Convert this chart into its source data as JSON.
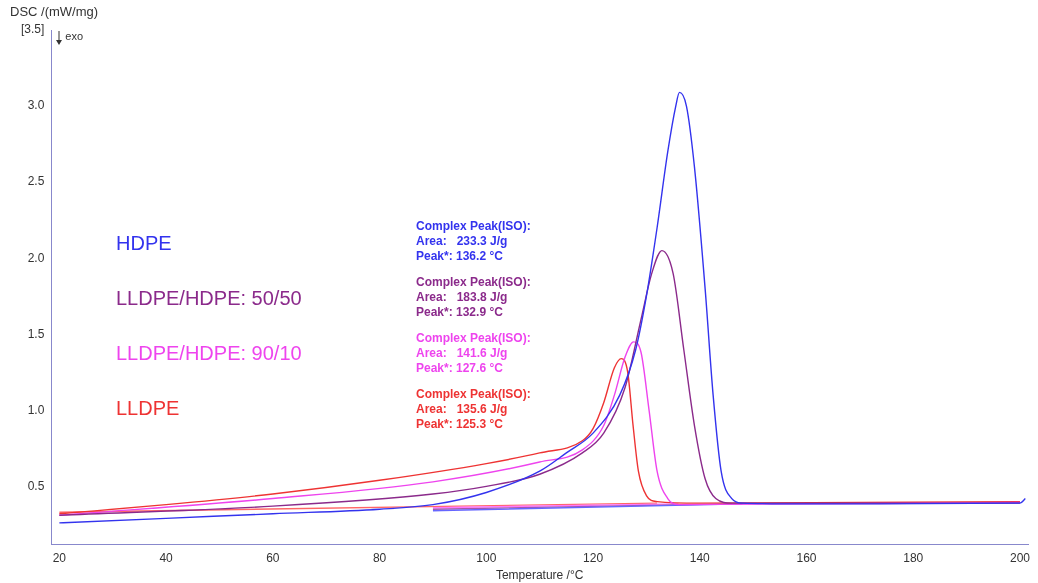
{
  "chart_data": {
    "type": "line",
    "xlabel": "Temperature /°C",
    "ylabel": "DSC /(mW/mg)",
    "xlim": [
      18.5,
      201.5
    ],
    "xticks": [
      20,
      40,
      60,
      80,
      100,
      120,
      140,
      160,
      180,
      200
    ],
    "ylim": [
      0.12,
      3.5
    ],
    "yticks": [
      0.5,
      {
        "value": 1,
        "label": "1.0"
      },
      1.5,
      {
        "value": 2,
        "label": "2.0"
      },
      2.5,
      {
        "value": 3,
        "label": "3.0"
      },
      {
        "value": 3.5,
        "label": "[3.5]"
      }
    ],
    "grid": false,
    "legend": "left",
    "marker": "none",
    "line_style": "solid",
    "annotations": [
      "exo",
      "Complex Peak(ISO):\nArea:   233.3 J/g\nPeak*: 136.2 °C",
      "Complex Peak(ISO):\nArea:   183.8 J/g\nPeak*: 132.9 °C",
      "Complex Peak(ISO):\nArea:   141.6 J/g\nPeak*: 127.6 °C",
      "Complex Peak(ISO):\nArea:   135.6 J/g\nPeak*: 125.3 °C"
    ],
    "series": [
      {
        "name": "HDPE",
        "color": "#3333ee",
        "x": [
          20,
          40,
          60,
          80,
          90,
          100,
          110,
          115,
          120,
          125,
          128,
          130,
          132,
          134,
          135.5,
          136.2,
          137.5,
          139,
          141,
          142.5,
          144,
          146,
          148,
          160,
          200,
          201
        ],
        "values": [
          0.26,
          0.29,
          0.32,
          0.35,
          0.38,
          0.46,
          0.6,
          0.72,
          0.85,
          1.1,
          1.4,
          1.75,
          2.2,
          2.7,
          3.0,
          3.09,
          3.0,
          2.6,
          1.8,
          1.1,
          0.6,
          0.42,
          0.39,
          0.385,
          0.39,
          0.42
        ]
      },
      {
        "name": "LLDPE/HDPE: 50/50",
        "color": "#8b2a8b",
        "x": [
          20,
          60,
          90,
          100,
          110,
          118,
          122,
          126,
          129,
          131,
          132.9,
          135,
          137,
          139,
          141,
          143,
          146,
          200
        ],
        "values": [
          0.31,
          0.37,
          0.45,
          0.5,
          0.58,
          0.72,
          0.85,
          1.15,
          1.6,
          1.9,
          2.05,
          1.9,
          1.4,
          0.9,
          0.55,
          0.42,
          0.39,
          0.39
        ]
      },
      {
        "name": "LLDPE/HDPE: 90/10",
        "color": "#ee44ee",
        "x": [
          20,
          60,
          90,
          110,
          118,
          122,
          124,
          126,
          127.6,
          129,
          130.5,
          132,
          134,
          136,
          200
        ],
        "values": [
          0.31,
          0.42,
          0.53,
          0.66,
          0.74,
          0.9,
          1.1,
          1.35,
          1.45,
          1.38,
          1.0,
          0.6,
          0.42,
          0.38,
          0.395
        ]
      },
      {
        "name": "LLDPE",
        "color": "#ee3333",
        "x": [
          20,
          40,
          60,
          80,
          100,
          110,
          118,
          120,
          122,
          124,
          125.3,
          126.5,
          127.5,
          128.5,
          130,
          132,
          140,
          200
        ],
        "values": [
          0.32,
          0.38,
          0.45,
          0.54,
          0.65,
          0.72,
          0.8,
          0.88,
          1.05,
          1.28,
          1.34,
          1.25,
          0.9,
          0.6,
          0.44,
          0.4,
          0.39,
          0.4
        ]
      },
      {
        "color": "#6666ff",
        "x": [
          90,
          148
        ],
        "values": [
          0.34,
          0.385
        ]
      },
      {
        "color": "#aa55aa",
        "x": [
          90,
          146
        ],
        "values": [
          0.35,
          0.385
        ]
      },
      {
        "color": "#ff77ff",
        "x": [
          90,
          136
        ],
        "values": [
          0.36,
          0.385
        ]
      },
      {
        "color": "#ff6666",
        "x": [
          20,
          132
        ],
        "values": [
          0.33,
          0.39
        ]
      }
    ]
  }
}
